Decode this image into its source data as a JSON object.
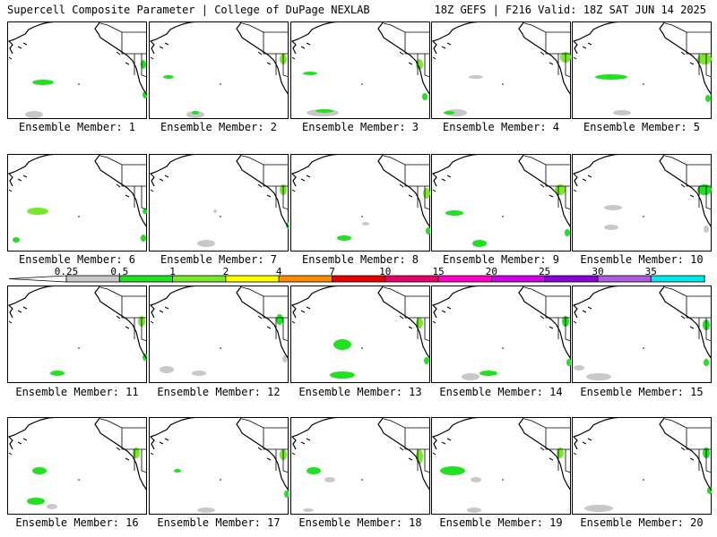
{
  "header": {
    "left": "Supercell Composite Parameter | College of DuPage NEXLAB",
    "right": "18Z GEFS | F216 Valid: 18Z SAT JUN 14 2025"
  },
  "panels": [
    {
      "label": "Ensemble Member: 1"
    },
    {
      "label": "Ensemble Member: 2"
    },
    {
      "label": "Ensemble Member: 3"
    },
    {
      "label": "Ensemble Member: 4"
    },
    {
      "label": "Ensemble Member: 5"
    },
    {
      "label": "Ensemble Member: 6"
    },
    {
      "label": "Ensemble Member: 7"
    },
    {
      "label": "Ensemble Member: 8"
    },
    {
      "label": "Ensemble Member: 9"
    },
    {
      "label": "Ensemble Member: 10"
    },
    {
      "label": "Ensemble Member: 11"
    },
    {
      "label": "Ensemble Member: 12"
    },
    {
      "label": "Ensemble Member: 13"
    },
    {
      "label": "Ensemble Member: 14"
    },
    {
      "label": "Ensemble Member: 15"
    },
    {
      "label": "Ensemble Member: 16"
    },
    {
      "label": "Ensemble Member: 17"
    },
    {
      "label": "Ensemble Member: 18"
    },
    {
      "label": "Ensemble Member: 19"
    },
    {
      "label": "Ensemble Member: 20"
    }
  ],
  "colorbar": {
    "ticks": [
      "0.25",
      "0.5",
      "1",
      "2",
      "4",
      "7",
      "10",
      "15",
      "20",
      "25",
      "30",
      "35"
    ],
    "colors": [
      "#c8c8c8",
      "#22e022",
      "#7ae82a",
      "#ffff00",
      "#ff8c00",
      "#e60000",
      "#e8006a",
      "#ff00c8",
      "#d000e8",
      "#8a00d8",
      "#b05ae0",
      "#00e8e8"
    ]
  }
}
